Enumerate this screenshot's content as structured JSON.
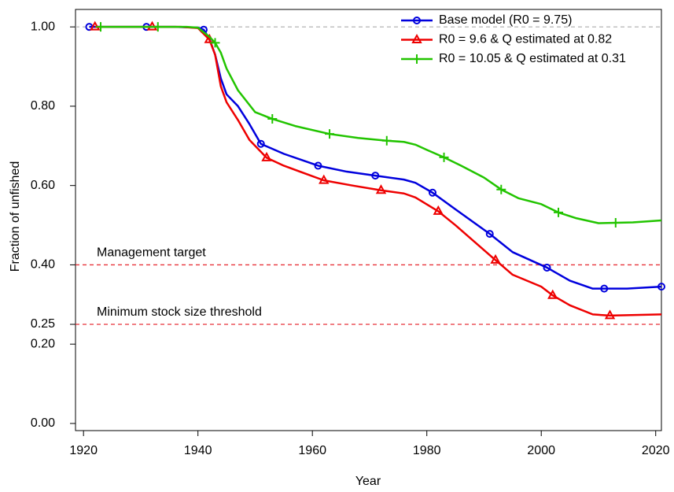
{
  "chart_data": {
    "type": "line",
    "xlabel": "Year",
    "ylabel": "Fraction of unfished",
    "xlim": [
      1918.6,
      2021
    ],
    "ylim": [
      -0.018,
      1.044
    ],
    "xticks": [
      1920,
      1940,
      1960,
      1980,
      2000,
      2020
    ],
    "yticks": [
      {
        "value": 0,
        "label": "0.00"
      },
      {
        "value": 0.2,
        "label": "0.20"
      },
      {
        "value": 0.25,
        "label": "0.25"
      },
      {
        "value": 0.4,
        "label": "0.40"
      },
      {
        "value": 0.6,
        "label": "0.60"
      },
      {
        "value": 0.8,
        "label": "0.80"
      },
      {
        "value": 1,
        "label": "1.00"
      }
    ],
    "legend": "top-right",
    "reference_lines": [
      {
        "value": 1,
        "color": "#bbbbbb"
      },
      {
        "value": 0.4,
        "label": "Management target",
        "color": "#e8333a"
      },
      {
        "value": 0.25,
        "label": "Minimum stock size threshold",
        "color": "#e8333a"
      }
    ],
    "series": [
      {
        "name": "Base model (R0 = 9.75)",
        "color": "#0000dd",
        "marker": "circle",
        "x": [
          1921,
          1926,
          1931,
          1936,
          1940,
          1941,
          1942,
          1943,
          1944,
          1945,
          1947,
          1949,
          1951,
          1955,
          1961,
          1966,
          1971,
          1976,
          1978,
          1981,
          1985,
          1991,
          1995,
          2001,
          2005,
          2009,
          2011,
          2015,
          2021
        ],
        "values": [
          1,
          1,
          1,
          1,
          0.998,
          0.993,
          0.97,
          0.93,
          0.87,
          0.83,
          0.8,
          0.755,
          0.705,
          0.68,
          0.65,
          0.635,
          0.625,
          0.615,
          0.607,
          0.582,
          0.54,
          0.478,
          0.432,
          0.393,
          0.36,
          0.34,
          0.34,
          0.34,
          0.345
        ]
      },
      {
        "name": "R0 = 9.6 & Q estimated at 0.82",
        "color": "#ee0000",
        "marker": "triangle",
        "x": [
          1922,
          1927,
          1932,
          1937,
          1940,
          1942,
          1943,
          1944,
          1945,
          1947,
          1949,
          1952,
          1955,
          1962,
          1967,
          1972,
          1976,
          1978,
          1982,
          1985,
          1992,
          1995,
          2000,
          2002,
          2005,
          2009,
          2012,
          2015,
          2021
        ],
        "values": [
          1,
          1,
          1,
          1,
          0.997,
          0.968,
          0.93,
          0.85,
          0.81,
          0.765,
          0.715,
          0.67,
          0.65,
          0.613,
          0.6,
          0.588,
          0.58,
          0.57,
          0.535,
          0.5,
          0.412,
          0.375,
          0.345,
          0.323,
          0.298,
          0.275,
          0.272,
          0.273,
          0.275
        ]
      },
      {
        "name": "R0 = 10.05 & Q estimated at 0.31",
        "color": "#22c400",
        "marker": "plus",
        "x": [
          1923,
          1928,
          1933,
          1938,
          1940,
          1942,
          1943,
          1944,
          1945,
          1947,
          1950,
          1953,
          1957,
          1963,
          1968,
          1973,
          1976,
          1978,
          1980,
          1983,
          1986,
          1990,
          1993,
          1996,
          2000,
          2003,
          2006,
          2010,
          2013,
          2016,
          2021
        ],
        "values": [
          1,
          1,
          1,
          1,
          0.998,
          0.975,
          0.96,
          0.935,
          0.895,
          0.84,
          0.785,
          0.768,
          0.75,
          0.73,
          0.72,
          0.713,
          0.71,
          0.703,
          0.69,
          0.671,
          0.65,
          0.62,
          0.59,
          0.568,
          0.553,
          0.532,
          0.518,
          0.505,
          0.506,
          0.507,
          0.512
        ]
      }
    ]
  }
}
